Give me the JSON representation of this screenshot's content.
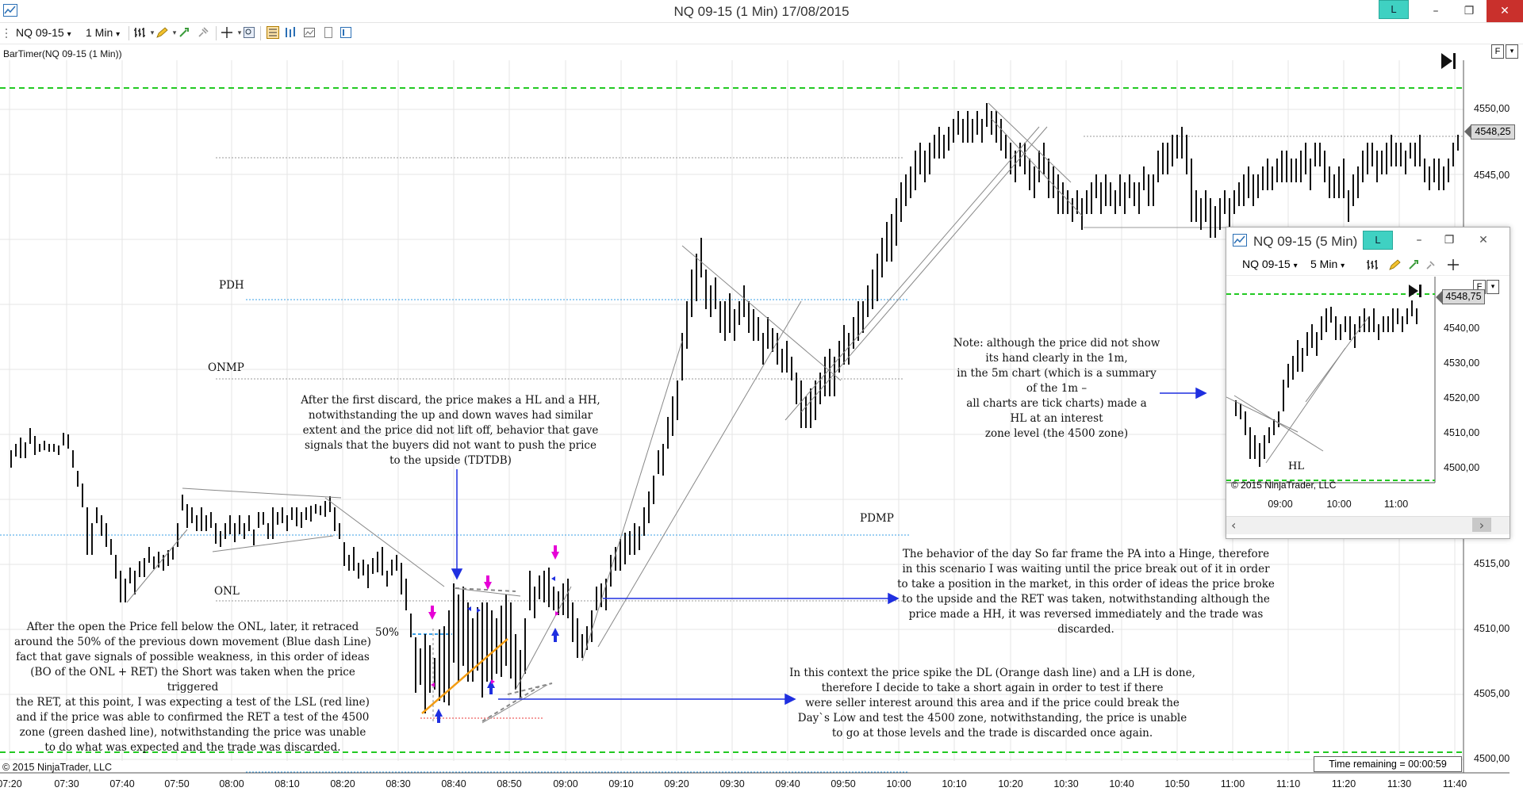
{
  "window": {
    "title": "NQ 09-15 (1 Min)  17/08/2015",
    "link_badge": "L",
    "minimize": "–",
    "maximize": "❐",
    "close": "✕"
  },
  "toolbar": {
    "instrument": "NQ 09-15",
    "interval": "1 Min",
    "dropdown_glyph": "▾"
  },
  "indicator_label": "BarTimer(NQ 09-15 (1 Min))",
  "scale_button": "F",
  "scale_dropdown": "▾",
  "price_axis": {
    "current_price": "4548,25",
    "ticks": [
      "4550,00",
      "4545,00",
      "4515,00",
      "4510,00",
      "4505,00",
      "4500,00"
    ]
  },
  "time_axis": {
    "ticks": [
      "07:20",
      "07:30",
      "07:40",
      "07:50",
      "08:00",
      "08:10",
      "08:20",
      "08:30",
      "08:40",
      "08:50",
      "09:00",
      "09:10",
      "09:20",
      "09:30",
      "09:40",
      "09:50",
      "10:00",
      "10:10",
      "10:20",
      "10:30",
      "10:40",
      "10:50",
      "11:00",
      "11:10",
      "11:20",
      "11:30",
      "11:40"
    ]
  },
  "levels": {
    "pdh": "PDH",
    "onmp": "ONMP",
    "pdmp": "PDMP",
    "onl": "ONL",
    "fifty": "50%"
  },
  "annotations": {
    "first_discard": "After the first discard, the price makes a HL and a HH,\nnotwithstanding the up and down waves had similar\nextent and the price did not lift off, behavior that gave\nsignals that the buyers did not want to push the price\nto the upside (TDTDB)",
    "open_fell": "After the open the Price fell below the ONL, later, it retraced\naround the 50% of the previous down movement (Blue dash Line)\nfact that gave signals of possible weakness, in this order of ideas\n(BO of the ONL + RET) the Short was taken when the price triggered\nthe RET, at this point, I was expecting a test of the LSL (red line)\nand if the price was able to confirmed the RET a test of the 4500\nzone (green dashed line), notwithstanding the price was unable\nto do what was expected and the trade was discarded.",
    "hinge": "The behavior of the day So far frame the PA into a Hinge, therefore\nin this scenario I was waiting until the price break out of it in order\nto take a position in the market, in this order of ideas the price broke\nto the upside and the RET was taken, notwithstanding although the\nprice made a HH, it was reversed immediately and the trade was\ndiscarded.",
    "spike": "In this context the price spike the DL (Orange dash line) and a LH is done,\ntherefore I decide to take a short again in order to test if there\nwere seller interest around this area and if the price could break the\nDay`s Low and test the 4500 zone, notwithstanding, the price is unable\nto go at those levels and the trade is discarded once again.",
    "note": "Note: although the price did not show\nits hand clearly in the 1m,\nin the 5m chart (which is a summary\nof the 1m –\nall charts are tick charts) made a\nHL at an interest\nzone level (the 4500 zone)"
  },
  "footer": {
    "copyright": "© 2015 NinjaTrader, LLC",
    "time_remaining": "Time remaining = 00:00:59"
  },
  "inset": {
    "title": "NQ 09-15 (5 Min)",
    "link_badge": "L",
    "minimize": "–",
    "maximize": "❐",
    "close": "✕",
    "instrument": "NQ 09-15",
    "interval": "5 Min",
    "scale_button": "F",
    "current_price": "4548,75",
    "price_ticks": [
      "4540,00",
      "4530,00",
      "4520,00",
      "4510,00",
      "4500,00"
    ],
    "time_ticks": [
      "09:00",
      "10:00",
      "11:00"
    ],
    "hl_label": "HL",
    "copyright": "© 2015 NinjaTrader, LLC",
    "scroll_left": "‹",
    "scroll_right": "›"
  },
  "colors": {
    "green_dash": "#22c922",
    "blue_dot": "#3a9fe6",
    "gray_dot": "#888888",
    "red_dot": "#e83a3a",
    "orange": "#f39c12",
    "blue_arrow": "#1f2fe0",
    "magenta": "#e600d6",
    "link_badge": "#3fd1c2",
    "close_red": "#c9302c"
  }
}
